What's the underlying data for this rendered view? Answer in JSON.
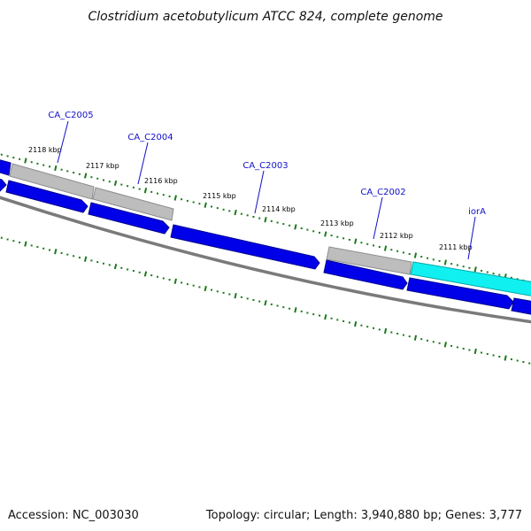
{
  "title": "Clostridium acetobutylicum ATCC 824, complete genome",
  "footer": {
    "accession": "Accession: NC_003030",
    "summary": "Topology: circular; Length: 3,940,880 bp; Genes: 3,777"
  },
  "colors": {
    "gene_grey": "#bdbdbd",
    "gene_blue": "#0000e8",
    "gene_cyan": "#10f0f0",
    "backbone": "#7a7a7a",
    "ticks": "#1a7a1a",
    "labels": "#1010c8"
  },
  "ticks": [
    "2118 kbp",
    "2117 kbp",
    "2116 kbp",
    "2115 kbp",
    "2114 kbp",
    "2113 kbp",
    "2112 kbp",
    "2111 kbp"
  ],
  "genes": [
    "CA_C2005",
    "CA_C2004",
    "CA_C2003",
    "CA_C2002",
    "iorA"
  ]
}
